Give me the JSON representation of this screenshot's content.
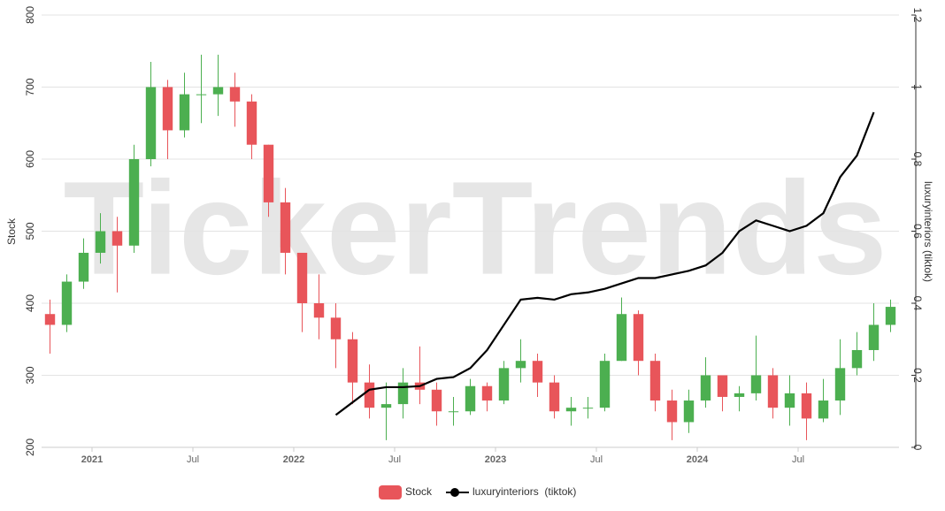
{
  "chart_data": {
    "type": "candlestick-line",
    "watermark": "TickerTrends",
    "y_label": "Stock",
    "y2_label": "luxuryinteriors  (tiktok)",
    "grid": true,
    "legend": "bottom",
    "xlim": [
      "2020-10",
      "2024-12"
    ],
    "xticks": [
      {
        "value": "2021-01",
        "label": "2021"
      },
      {
        "value": "2021-07",
        "label": "Jul"
      },
      {
        "value": "2022-01",
        "label": "2022"
      },
      {
        "value": "2022-07",
        "label": "Jul"
      },
      {
        "value": "2023-01",
        "label": "2023"
      },
      {
        "value": "2023-07",
        "label": "Jul"
      },
      {
        "value": "2024-01",
        "label": "2024"
      },
      {
        "value": "2024-07",
        "label": "Jul"
      }
    ],
    "ylim": [
      200,
      800
    ],
    "yticks": [
      200,
      300,
      400,
      500,
      600,
      700,
      800
    ],
    "y2lim": [
      0,
      1.2
    ],
    "y2ticks": [
      0,
      0.2,
      0.4,
      0.6,
      0.8,
      1,
      1.2
    ],
    "x": [
      "2020-10",
      "2020-11",
      "2020-12",
      "2021-01",
      "2021-02",
      "2021-03",
      "2021-04",
      "2021-05",
      "2021-06",
      "2021-07",
      "2021-08",
      "2021-09",
      "2021-10",
      "2021-11",
      "2021-12",
      "2022-01",
      "2022-02",
      "2022-03",
      "2022-04",
      "2022-05",
      "2022-06",
      "2022-07",
      "2022-08",
      "2022-09",
      "2022-10",
      "2022-11",
      "2022-12",
      "2023-01",
      "2023-02",
      "2023-03",
      "2023-04",
      "2023-05",
      "2023-06",
      "2023-07",
      "2023-08",
      "2023-09",
      "2023-10",
      "2023-11",
      "2023-12",
      "2024-01",
      "2024-02",
      "2024-03",
      "2024-04",
      "2024-05",
      "2024-06",
      "2024-07",
      "2024-08",
      "2024-09",
      "2024-10",
      "2024-11",
      "2024-12"
    ],
    "series": [
      {
        "name": "Stock",
        "color": "#e8555a",
        "up_color": "#4caf50",
        "open": [
          385,
          370,
          430,
          470,
          500,
          480,
          600,
          700,
          640,
          690,
          690,
          700,
          680,
          620,
          540,
          470,
          400,
          380,
          350,
          290,
          255,
          260,
          290,
          280,
          250,
          250,
          285,
          265,
          310,
          320,
          290,
          250,
          255,
          255,
          320,
          385,
          320,
          265,
          235,
          265,
          300,
          270,
          275,
          300,
          255,
          275,
          240,
          265,
          310,
          335,
          370
        ],
        "high": [
          405,
          440,
          490,
          525,
          520,
          620,
          735,
          710,
          720,
          745,
          745,
          720,
          690,
          620,
          560,
          470,
          440,
          400,
          360,
          315,
          290,
          310,
          340,
          290,
          270,
          295,
          290,
          320,
          350,
          330,
          300,
          270,
          270,
          330,
          408,
          390,
          330,
          280,
          280,
          325,
          300,
          285,
          355,
          310,
          300,
          290,
          295,
          350,
          360,
          400,
          405
        ],
        "low": [
          330,
          360,
          420,
          455,
          415,
          470,
          590,
          600,
          630,
          650,
          660,
          645,
          600,
          520,
          440,
          360,
          350,
          310,
          260,
          240,
          210,
          240,
          260,
          230,
          230,
          245,
          250,
          260,
          290,
          270,
          240,
          230,
          240,
          250,
          320,
          300,
          250,
          210,
          220,
          255,
          250,
          250,
          265,
          240,
          230,
          210,
          235,
          245,
          300,
          320,
          360
        ],
        "close": [
          370,
          430,
          470,
          500,
          480,
          600,
          700,
          640,
          690,
          690,
          700,
          680,
          620,
          540,
          470,
          400,
          380,
          350,
          290,
          255,
          260,
          290,
          280,
          250,
          250,
          285,
          265,
          310,
          320,
          290,
          250,
          255,
          255,
          320,
          385,
          320,
          265,
          235,
          265,
          300,
          270,
          275,
          300,
          255,
          275,
          240,
          265,
          310,
          335,
          370,
          395
        ]
      },
      {
        "name": "luxuryinteriors  (tiktok)",
        "color": "#000000",
        "axis": "y2",
        "x": [
          "2022-03",
          "2022-04",
          "2022-05",
          "2022-06",
          "2022-07",
          "2022-08",
          "2022-09",
          "2022-10",
          "2022-11",
          "2022-12",
          "2023-01",
          "2023-02",
          "2023-03",
          "2023-04",
          "2023-05",
          "2023-06",
          "2023-07",
          "2023-08",
          "2023-09",
          "2023-10",
          "2023-11",
          "2023-12",
          "2024-01",
          "2024-02",
          "2024-03",
          "2024-04",
          "2024-05",
          "2024-06",
          "2024-07",
          "2024-08",
          "2024-09",
          "2024-10",
          "2024-11"
        ],
        "values": [
          0.09,
          0.125,
          0.16,
          0.167,
          0.167,
          0.17,
          0.19,
          0.195,
          0.22,
          0.27,
          0.34,
          0.41,
          0.415,
          0.41,
          0.425,
          0.43,
          0.44,
          0.455,
          0.47,
          0.47,
          0.48,
          0.49,
          0.505,
          0.54,
          0.6,
          0.63,
          0.615,
          0.6,
          0.615,
          0.65,
          0.75,
          0.81,
          0.93
        ]
      }
    ]
  }
}
